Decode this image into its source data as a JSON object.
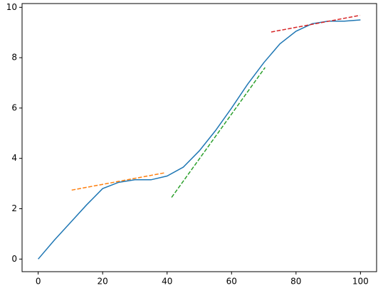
{
  "chart_data": {
    "type": "line",
    "xlim": [
      -5,
      105
    ],
    "ylim": [
      -0.5,
      10.15
    ],
    "xticks": [
      0,
      20,
      40,
      60,
      80,
      100
    ],
    "yticks": [
      0,
      2,
      4,
      6,
      8,
      10
    ],
    "grid": false,
    "series": [
      {
        "color": "#1f77b4",
        "dashed": false,
        "x": [
          0,
          5,
          10,
          15,
          20,
          25,
          30,
          35,
          40,
          45,
          50,
          55,
          60,
          65,
          70,
          75,
          80,
          85,
          90,
          95,
          100
        ],
        "values": [
          0,
          0.75,
          1.45,
          2.15,
          2.8,
          3.05,
          3.15,
          3.15,
          3.3,
          3.65,
          4.3,
          5.1,
          6.0,
          6.95,
          7.8,
          8.55,
          9.05,
          9.35,
          9.45,
          9.45,
          9.5
        ]
      },
      {
        "color": "#ff7f0e",
        "dashed": true,
        "x": [
          10.4,
          39.4
        ],
        "values": [
          2.74,
          3.43
        ]
      },
      {
        "color": "#2ca02c",
        "dashed": true,
        "x": [
          41.4,
          70.4
        ],
        "values": [
          2.45,
          7.61
        ]
      },
      {
        "color": "#d62728",
        "dashed": true,
        "x": [
          72.3,
          99.8
        ],
        "values": [
          9.02,
          9.68
        ]
      }
    ]
  }
}
